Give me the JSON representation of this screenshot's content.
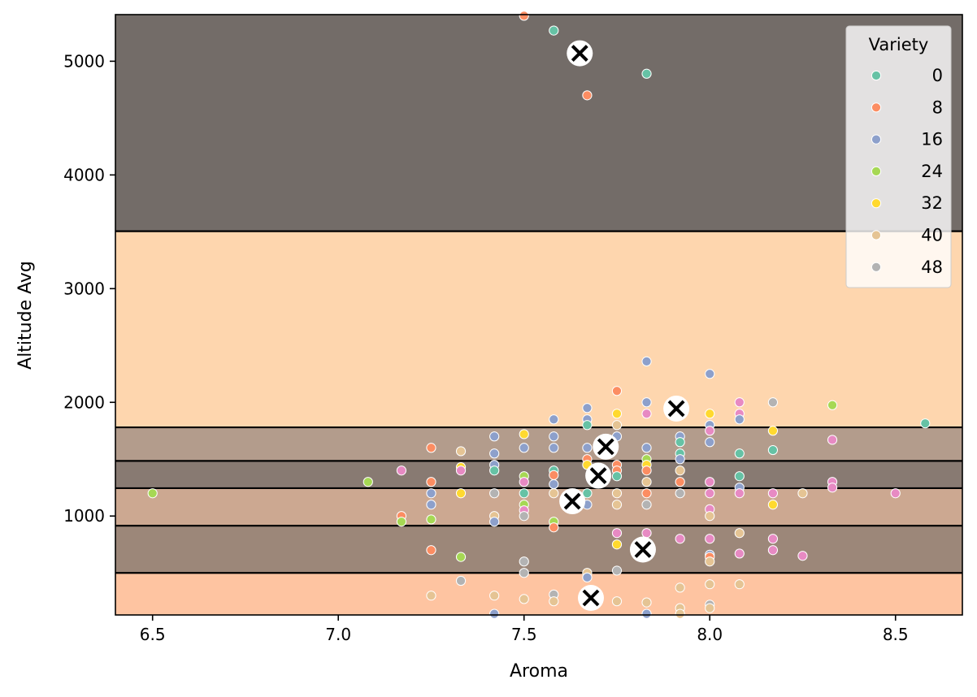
{
  "chart_data": {
    "type": "scatter",
    "xlabel": "Aroma",
    "ylabel": "Altitude Avg",
    "xlim": [
      6.4,
      8.68
    ],
    "ylim": [
      130,
      5410
    ],
    "xticks": [
      6.5,
      7.0,
      7.5,
      8.0,
      8.5
    ],
    "xtick_labels": [
      "6.5",
      "7.0",
      "7.5",
      "8.0",
      "8.5"
    ],
    "yticks": [
      1000,
      2000,
      3000,
      4000,
      5000
    ],
    "ytick_labels": [
      "1000",
      "2000",
      "3000",
      "4000",
      "5000"
    ],
    "grid": false,
    "legend": {
      "title": "Variety",
      "placement": "top-right",
      "entries": [
        {
          "label": "0",
          "color": "#66c2a5"
        },
        {
          "label": "8",
          "color": "#fc8d62"
        },
        {
          "label": "16",
          "color": "#8da0cb"
        },
        {
          "label": "24",
          "color": "#a6d854"
        },
        {
          "label": "32",
          "color": "#ffd92f"
        },
        {
          "label": "40",
          "color": "#e5c494"
        },
        {
          "label": "48",
          "color": "#b3b3b3"
        }
      ]
    },
    "bands": [
      {
        "y0": 130,
        "y1": 500,
        "color": "#fec4a1"
      },
      {
        "y0": 500,
        "y1": 915,
        "color": "#9c8779"
      },
      {
        "y0": 915,
        "y1": 1245,
        "color": "#cca891"
      },
      {
        "y0": 1245,
        "y1": 1485,
        "color": "#887a72"
      },
      {
        "y0": 1485,
        "y1": 1780,
        "color": "#b39c8c"
      },
      {
        "y0": 1780,
        "y1": 3505,
        "color": "#fed6ae"
      },
      {
        "y0": 3505,
        "y1": 5410,
        "color": "#736c68"
      }
    ],
    "boundaries": [
      500,
      915,
      1245,
      1485,
      1780,
      3505
    ],
    "centroids": [
      {
        "x": 7.65,
        "y": 5070
      },
      {
        "x": 7.91,
        "y": 1945
      },
      {
        "x": 7.72,
        "y": 1610
      },
      {
        "x": 7.7,
        "y": 1355
      },
      {
        "x": 7.63,
        "y": 1130
      },
      {
        "x": 7.82,
        "y": 705
      },
      {
        "x": 7.68,
        "y": 280
      }
    ],
    "points": [
      {
        "x": 7.5,
        "y": 5400,
        "c": "#fc8d62"
      },
      {
        "x": 7.58,
        "y": 5270,
        "c": "#66c2a5"
      },
      {
        "x": 7.83,
        "y": 4890,
        "c": "#66c2a5"
      },
      {
        "x": 7.67,
        "y": 4700,
        "c": "#fc8d62"
      },
      {
        "x": 7.83,
        "y": 2360,
        "c": "#8da0cb"
      },
      {
        "x": 8.0,
        "y": 2250,
        "c": "#8da0cb"
      },
      {
        "x": 7.75,
        "y": 2100,
        "c": "#fc8d62"
      },
      {
        "x": 8.08,
        "y": 2000,
        "c": "#e78ac3"
      },
      {
        "x": 8.17,
        "y": 2000,
        "c": "#b3b3b3"
      },
      {
        "x": 8.33,
        "y": 1975,
        "c": "#a6d854"
      },
      {
        "x": 7.83,
        "y": 2000,
        "c": "#8da0cb"
      },
      {
        "x": 7.67,
        "y": 1950,
        "c": "#8da0cb"
      },
      {
        "x": 7.75,
        "y": 1900,
        "c": "#ffd92f"
      },
      {
        "x": 7.83,
        "y": 1900,
        "c": "#e78ac3"
      },
      {
        "x": 8.0,
        "y": 1900,
        "c": "#ffd92f"
      },
      {
        "x": 8.08,
        "y": 1900,
        "c": "#e78ac3"
      },
      {
        "x": 7.58,
        "y": 1850,
        "c": "#8da0cb"
      },
      {
        "x": 7.67,
        "y": 1850,
        "c": "#8da0cb"
      },
      {
        "x": 8.08,
        "y": 1850,
        "c": "#8da0cb"
      },
      {
        "x": 7.67,
        "y": 1800,
        "c": "#66c2a5"
      },
      {
        "x": 7.75,
        "y": 1800,
        "c": "#e5c494"
      },
      {
        "x": 8.0,
        "y": 1800,
        "c": "#8da0cb"
      },
      {
        "x": 8.58,
        "y": 1815,
        "c": "#66c2a5"
      },
      {
        "x": 8.0,
        "y": 1750,
        "c": "#e78ac3"
      },
      {
        "x": 8.17,
        "y": 1750,
        "c": "#ffd92f"
      },
      {
        "x": 7.5,
        "y": 1720,
        "c": "#ffd92f"
      },
      {
        "x": 7.42,
        "y": 1700,
        "c": "#8da0cb"
      },
      {
        "x": 7.58,
        "y": 1700,
        "c": "#8da0cb"
      },
      {
        "x": 7.75,
        "y": 1700,
        "c": "#8da0cb"
      },
      {
        "x": 7.92,
        "y": 1700,
        "c": "#8da0cb"
      },
      {
        "x": 8.33,
        "y": 1670,
        "c": "#e78ac3"
      },
      {
        "x": 7.92,
        "y": 1650,
        "c": "#66c2a5"
      },
      {
        "x": 8.0,
        "y": 1650,
        "c": "#8da0cb"
      },
      {
        "x": 7.25,
        "y": 1600,
        "c": "#fc8d62"
      },
      {
        "x": 7.5,
        "y": 1600,
        "c": "#8da0cb"
      },
      {
        "x": 7.58,
        "y": 1600,
        "c": "#8da0cb"
      },
      {
        "x": 7.67,
        "y": 1600,
        "c": "#8da0cb"
      },
      {
        "x": 7.83,
        "y": 1600,
        "c": "#8da0cb"
      },
      {
        "x": 8.17,
        "y": 1580,
        "c": "#66c2a5"
      },
      {
        "x": 7.33,
        "y": 1570,
        "c": "#e5c494"
      },
      {
        "x": 7.42,
        "y": 1550,
        "c": "#8da0cb"
      },
      {
        "x": 7.92,
        "y": 1550,
        "c": "#66c2a5"
      },
      {
        "x": 8.08,
        "y": 1550,
        "c": "#66c2a5"
      },
      {
        "x": 7.67,
        "y": 1500,
        "c": "#fc8d62"
      },
      {
        "x": 7.83,
        "y": 1500,
        "c": "#a6d854"
      },
      {
        "x": 7.92,
        "y": 1500,
        "c": "#8da0cb"
      },
      {
        "x": 7.42,
        "y": 1450,
        "c": "#8da0cb"
      },
      {
        "x": 7.67,
        "y": 1450,
        "c": "#ffd92f"
      },
      {
        "x": 7.75,
        "y": 1450,
        "c": "#fc8d62"
      },
      {
        "x": 7.83,
        "y": 1450,
        "c": "#ffd92f"
      },
      {
        "x": 7.33,
        "y": 1430,
        "c": "#ffd92f"
      },
      {
        "x": 7.17,
        "y": 1400,
        "c": "#e78ac3"
      },
      {
        "x": 7.33,
        "y": 1400,
        "c": "#e78ac3"
      },
      {
        "x": 7.42,
        "y": 1400,
        "c": "#66c2a5"
      },
      {
        "x": 7.58,
        "y": 1400,
        "c": "#66c2a5"
      },
      {
        "x": 7.75,
        "y": 1400,
        "c": "#fc8d62"
      },
      {
        "x": 7.83,
        "y": 1400,
        "c": "#fc8d62"
      },
      {
        "x": 7.92,
        "y": 1400,
        "c": "#e5c494"
      },
      {
        "x": 7.5,
        "y": 1350,
        "c": "#a6d854"
      },
      {
        "x": 7.58,
        "y": 1360,
        "c": "#fc8d62"
      },
      {
        "x": 7.75,
        "y": 1350,
        "c": "#66c2a5"
      },
      {
        "x": 8.08,
        "y": 1350,
        "c": "#66c2a5"
      },
      {
        "x": 7.08,
        "y": 1300,
        "c": "#a6d854"
      },
      {
        "x": 7.25,
        "y": 1300,
        "c": "#fc8d62"
      },
      {
        "x": 7.5,
        "y": 1300,
        "c": "#e78ac3"
      },
      {
        "x": 7.83,
        "y": 1300,
        "c": "#e5c494"
      },
      {
        "x": 7.92,
        "y": 1300,
        "c": "#fc8d62"
      },
      {
        "x": 8.0,
        "y": 1300,
        "c": "#e78ac3"
      },
      {
        "x": 8.33,
        "y": 1300,
        "c": "#e78ac3"
      },
      {
        "x": 7.58,
        "y": 1280,
        "c": "#8da0cb"
      },
      {
        "x": 8.08,
        "y": 1250,
        "c": "#8da0cb"
      },
      {
        "x": 8.33,
        "y": 1250,
        "c": "#e78ac3"
      },
      {
        "x": 6.5,
        "y": 1200,
        "c": "#a6d854"
      },
      {
        "x": 7.25,
        "y": 1200,
        "c": "#8da0cb"
      },
      {
        "x": 7.33,
        "y": 1200,
        "c": "#ffd92f"
      },
      {
        "x": 7.42,
        "y": 1200,
        "c": "#b3b3b3"
      },
      {
        "x": 7.5,
        "y": 1200,
        "c": "#66c2a5"
      },
      {
        "x": 7.58,
        "y": 1200,
        "c": "#e5c494"
      },
      {
        "x": 7.67,
        "y": 1200,
        "c": "#66c2a5"
      },
      {
        "x": 7.75,
        "y": 1200,
        "c": "#e5c494"
      },
      {
        "x": 7.83,
        "y": 1200,
        "c": "#fc8d62"
      },
      {
        "x": 7.92,
        "y": 1200,
        "c": "#b3b3b3"
      },
      {
        "x": 8.0,
        "y": 1200,
        "c": "#e78ac3"
      },
      {
        "x": 8.08,
        "y": 1200,
        "c": "#e78ac3"
      },
      {
        "x": 8.17,
        "y": 1200,
        "c": "#e78ac3"
      },
      {
        "x": 8.25,
        "y": 1200,
        "c": "#e5c494"
      },
      {
        "x": 8.5,
        "y": 1200,
        "c": "#e78ac3"
      },
      {
        "x": 7.25,
        "y": 1100,
        "c": "#8da0cb"
      },
      {
        "x": 7.5,
        "y": 1100,
        "c": "#a6d854"
      },
      {
        "x": 7.67,
        "y": 1100,
        "c": "#8da0cb"
      },
      {
        "x": 7.75,
        "y": 1100,
        "c": "#e5c494"
      },
      {
        "x": 7.83,
        "y": 1100,
        "c": "#b3b3b3"
      },
      {
        "x": 8.17,
        "y": 1100,
        "c": "#ffd92f"
      },
      {
        "x": 7.5,
        "y": 1050,
        "c": "#e78ac3"
      },
      {
        "x": 8.0,
        "y": 1060,
        "c": "#e78ac3"
      },
      {
        "x": 7.17,
        "y": 1000,
        "c": "#fc8d62"
      },
      {
        "x": 7.42,
        "y": 1000,
        "c": "#e5c494"
      },
      {
        "x": 7.5,
        "y": 1000,
        "c": "#b3b3b3"
      },
      {
        "x": 8.0,
        "y": 1000,
        "c": "#e5c494"
      },
      {
        "x": 7.17,
        "y": 950,
        "c": "#a6d854"
      },
      {
        "x": 7.25,
        "y": 970,
        "c": "#a6d854"
      },
      {
        "x": 7.42,
        "y": 950,
        "c": "#8da0cb"
      },
      {
        "x": 7.58,
        "y": 950,
        "c": "#a6d854"
      },
      {
        "x": 7.58,
        "y": 900,
        "c": "#fc8d62"
      },
      {
        "x": 7.75,
        "y": 850,
        "c": "#e78ac3"
      },
      {
        "x": 7.83,
        "y": 850,
        "c": "#e78ac3"
      },
      {
        "x": 8.08,
        "y": 850,
        "c": "#e5c494"
      },
      {
        "x": 7.92,
        "y": 800,
        "c": "#e78ac3"
      },
      {
        "x": 8.0,
        "y": 800,
        "c": "#e78ac3"
      },
      {
        "x": 8.17,
        "y": 800,
        "c": "#e78ac3"
      },
      {
        "x": 7.75,
        "y": 750,
        "c": "#ffd92f"
      },
      {
        "x": 7.25,
        "y": 700,
        "c": "#fc8d62"
      },
      {
        "x": 8.17,
        "y": 700,
        "c": "#e78ac3"
      },
      {
        "x": 8.0,
        "y": 660,
        "c": "#8da0cb"
      },
      {
        "x": 8.0,
        "y": 640,
        "c": "#fc8d62"
      },
      {
        "x": 8.08,
        "y": 670,
        "c": "#e78ac3"
      },
      {
        "x": 8.25,
        "y": 650,
        "c": "#e78ac3"
      },
      {
        "x": 7.33,
        "y": 640,
        "c": "#a6d854"
      },
      {
        "x": 7.5,
        "y": 600,
        "c": "#b3b3b3"
      },
      {
        "x": 8.0,
        "y": 600,
        "c": "#e5c494"
      },
      {
        "x": 7.75,
        "y": 520,
        "c": "#b3b3b3"
      },
      {
        "x": 7.5,
        "y": 500,
        "c": "#b3b3b3"
      },
      {
        "x": 7.67,
        "y": 500,
        "c": "#e5c494"
      },
      {
        "x": 7.67,
        "y": 460,
        "c": "#8da0cb"
      },
      {
        "x": 7.33,
        "y": 430,
        "c": "#b3b3b3"
      },
      {
        "x": 7.92,
        "y": 370,
        "c": "#e5c494"
      },
      {
        "x": 8.0,
        "y": 400,
        "c": "#e5c494"
      },
      {
        "x": 8.08,
        "y": 400,
        "c": "#e5c494"
      },
      {
        "x": 7.25,
        "y": 300,
        "c": "#e5c494"
      },
      {
        "x": 7.42,
        "y": 300,
        "c": "#e5c494"
      },
      {
        "x": 7.58,
        "y": 310,
        "c": "#b3b3b3"
      },
      {
        "x": 7.5,
        "y": 270,
        "c": "#e5c494"
      },
      {
        "x": 7.58,
        "y": 250,
        "c": "#e5c494"
      },
      {
        "x": 7.75,
        "y": 250,
        "c": "#e5c494"
      },
      {
        "x": 7.83,
        "y": 240,
        "c": "#e5c494"
      },
      {
        "x": 8.0,
        "y": 220,
        "c": "#b3b3b3"
      },
      {
        "x": 7.92,
        "y": 190,
        "c": "#e5c494"
      },
      {
        "x": 8.0,
        "y": 190,
        "c": "#e5c494"
      },
      {
        "x": 7.42,
        "y": 140,
        "c": "#8da0cb"
      },
      {
        "x": 7.83,
        "y": 140,
        "c": "#8da0cb"
      },
      {
        "x": 7.92,
        "y": 140,
        "c": "#e5c494"
      }
    ]
  }
}
